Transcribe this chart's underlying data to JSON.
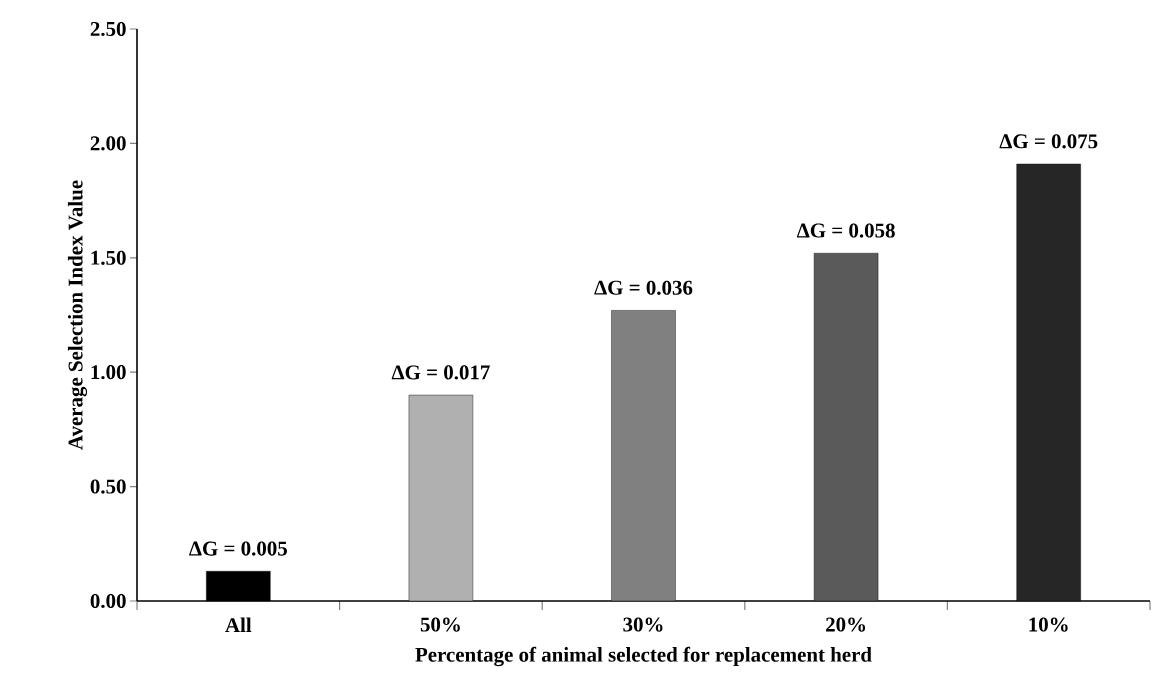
{
  "chart_data": {
    "type": "bar",
    "xlabel": "Percentage of animal  selected for replacement herd",
    "ylabel": "Average Selection Index Value",
    "categories": [
      "All",
      "50%",
      "30%",
      "20%",
      "10%"
    ],
    "values": [
      0.13,
      0.9,
      1.27,
      1.52,
      1.91
    ],
    "colors": [
      "#000000",
      "#b0b0b0",
      "#808080",
      "#5a5a5a",
      "#262626"
    ],
    "ylim": [
      0,
      2.5
    ],
    "yticks": [
      {
        "value": 0,
        "label": "0.00"
      },
      {
        "value": 0.5,
        "label": "0.50"
      },
      {
        "value": 1,
        "label": "1.00"
      },
      {
        "value": 1.5,
        "label": "1.50"
      },
      {
        "value": 2,
        "label": "2.00"
      },
      {
        "value": 2.5,
        "label": "2.50"
      }
    ],
    "annotations": [
      {
        "text": "ΔG = 0.005",
        "x": "All",
        "y": 0.13
      },
      {
        "text": "ΔG = 0.017",
        "x": "50%",
        "y": 0.9
      },
      {
        "text": "ΔG = 0.036",
        "x": "30%",
        "y": 1.27
      },
      {
        "text": "ΔG = 0.058",
        "x": "20%",
        "y": 1.52
      },
      {
        "text": "ΔG = 0.075",
        "x": "10%",
        "y": 1.91
      }
    ]
  }
}
